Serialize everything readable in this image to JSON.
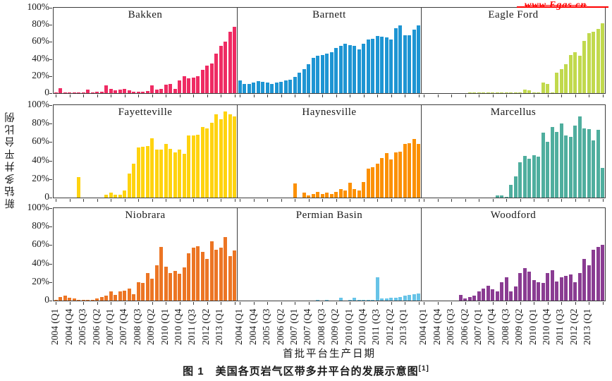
{
  "watermark": {
    "text": "www.Egas.cn",
    "color": "#FF0000"
  },
  "figure": {
    "caption": "图 1　美国各页岩气区带多井平台的发展示意图",
    "caption_superscript": "[1]"
  },
  "chart_data": {
    "type": "bar",
    "layout": "3x3-small-multiples",
    "title": "美国各页岩气区带多井平台的发展示意图",
    "xlabel": "首批平台生产日期",
    "ylabel": "新钻多井平台比例",
    "ylim": [
      0,
      100
    ],
    "grid": false,
    "y_tick_labels": [
      "100%",
      "80%",
      "60%",
      "40%",
      "20%",
      "0"
    ],
    "x_unit": "quarter",
    "x_start": "2004 Q1",
    "x_end": "2013 Q4",
    "x_tick_labels": [
      "2004 (Q1",
      "2004 (Q4",
      "2005 (Q3",
      "2006 (Q2",
      "2007 (Q1",
      "2007 (Q4",
      "2008 (Q3",
      "2009 (Q2",
      "2010 (Q1",
      "2010 (Q4",
      "2011 (Q3",
      "2012 (Q2",
      "2013 (Q1"
    ],
    "axis_color": "#3c3c3c",
    "panels": [
      {
        "name": "Bakken",
        "color": "#EF2B63",
        "values_percent": [
          1,
          6,
          1,
          0.5,
          1,
          1,
          1,
          4,
          0.5,
          1.5,
          2,
          9,
          5,
          3,
          4,
          5,
          3,
          2,
          1.5,
          2,
          2.5,
          9,
          4,
          5,
          10,
          11,
          5,
          15,
          20,
          17,
          18,
          20,
          27,
          32,
          35,
          46,
          55,
          60,
          72,
          78
        ]
      },
      {
        "name": "Barnett",
        "color": "#1E95D3",
        "values_percent": [
          15,
          11,
          11,
          12,
          14,
          13,
          12,
          11,
          12,
          13,
          15,
          16,
          19,
          24,
          28,
          34,
          41,
          44,
          45,
          46,
          48,
          53,
          55,
          58,
          56,
          55,
          51,
          58,
          63,
          64,
          67,
          66,
          65,
          63,
          76,
          79,
          68,
          68,
          74,
          79
        ]
      },
      {
        "name": "Eagle Ford",
        "color": "#C1D94D",
        "values_percent": [
          0,
          0,
          0,
          0,
          0,
          0,
          0,
          0,
          0,
          0,
          0.5,
          0.5,
          0.5,
          0.5,
          0.5,
          0.5,
          0.5,
          0.5,
          0.5,
          0.5,
          0.5,
          0.5,
          4,
          3,
          0.5,
          0.5,
          12,
          11,
          0.5,
          24,
          28,
          34,
          45,
          48,
          44,
          61,
          70,
          72,
          75,
          82
        ]
      },
      {
        "name": "Fayetteville",
        "color": "#FFD30F",
        "values_percent": [
          0,
          0,
          0,
          0,
          0,
          22,
          0,
          0,
          0,
          0,
          0,
          3,
          5,
          3,
          3,
          8,
          26,
          37,
          54,
          55,
          56,
          64,
          52,
          52,
          58,
          53,
          49,
          52,
          47,
          67,
          67,
          68,
          76,
          75,
          81,
          90,
          85,
          93,
          90,
          88
        ]
      },
      {
        "name": "Haynesville",
        "color": "#FC9003",
        "values_percent": [
          0,
          0,
          0,
          0,
          0,
          0,
          0,
          0,
          0,
          0,
          0,
          0,
          15,
          0,
          5,
          2,
          4,
          6,
          4,
          5,
          4,
          6,
          9,
          8,
          16,
          9,
          8,
          17,
          31,
          33,
          37,
          43,
          48,
          41,
          49,
          50,
          58,
          59,
          63,
          58
        ]
      },
      {
        "name": "Marcellus",
        "color": "#4FAE9E",
        "values_percent": [
          0,
          0,
          0,
          0,
          0,
          0,
          0,
          0,
          0,
          0,
          0,
          0,
          0,
          0,
          0,
          0,
          2,
          2,
          1,
          14,
          23,
          38,
          45,
          42,
          46,
          44,
          70,
          60,
          76,
          71,
          80,
          67,
          66,
          78,
          88,
          75,
          74,
          62,
          73,
          32
        ]
      },
      {
        "name": "Niobrara",
        "color": "#EC7524",
        "values_percent": [
          0.5,
          4,
          5,
          3,
          2,
          1,
          1,
          0.5,
          1,
          2,
          4,
          5,
          10,
          6,
          10,
          11,
          13,
          7,
          20,
          19,
          30,
          24,
          38,
          58,
          37,
          30,
          32,
          29,
          36,
          51,
          57,
          59,
          53,
          45,
          64,
          55,
          57,
          69,
          48,
          54
        ]
      },
      {
        "name": "Permian Basin",
        "color": "#67C3E7",
        "values_percent": [
          0,
          0,
          0,
          0,
          0,
          0,
          0,
          0,
          0,
          0,
          0,
          0,
          0,
          0,
          0,
          0,
          0,
          1,
          0,
          1,
          0,
          0,
          3,
          0,
          1,
          3,
          1,
          1,
          1,
          1,
          25,
          2,
          2,
          3,
          3,
          4,
          5,
          6,
          7,
          8
        ]
      },
      {
        "name": "Woodford",
        "color": "#8A3C92",
        "values_percent": [
          0,
          0,
          0,
          0,
          0,
          0,
          0,
          0,
          6,
          2,
          4,
          5,
          10,
          13,
          16,
          12,
          10,
          20,
          25,
          10,
          15,
          30,
          35,
          31,
          22,
          20,
          19,
          30,
          33,
          21,
          25,
          27,
          28,
          20,
          30,
          45,
          38,
          55,
          58,
          60
        ]
      }
    ]
  }
}
